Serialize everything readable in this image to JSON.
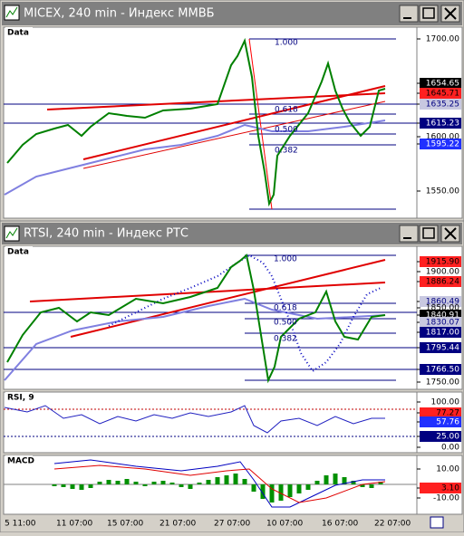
{
  "windows": [
    {
      "title": "MICEX, 240 min - Индекс ММВБ",
      "panels": [
        {
          "label": "Data",
          "axis": [
            "1700.00",
            "1654.65",
            "1645.71",
            "1635.25",
            "1615.23",
            "1600.00",
            "1595.22",
            "1550.00"
          ],
          "fib": [
            "1.000",
            "0.618",
            "0.500",
            "0.382"
          ]
        }
      ]
    },
    {
      "title": "RTSI, 240 min - Индекс РТС",
      "panels": [
        {
          "label": "Data",
          "axis": [
            "1915.90",
            "1900.00",
            "1886.24",
            "1860.49",
            "1850.00",
            "1840.91",
            "1830.07",
            "1817.00",
            "1795.44",
            "1766.50",
            "1750.00"
          ],
          "fib": [
            "1.000",
            "0.618",
            "0.500",
            "0.382"
          ]
        },
        {
          "label": "RSI, 9",
          "axis": [
            "100.00",
            "77.27",
            "57.76",
            "25.00",
            "0.00"
          ]
        },
        {
          "label": "MACD",
          "axis": [
            "10.00",
            "3.10",
            "-10.00"
          ]
        }
      ],
      "time_axis": [
        "5 11:00",
        "11 07:00",
        "15 07:00",
        "21 07:00",
        "27 07:00",
        "10 07:00",
        "16 07:00",
        "22 07:00"
      ]
    }
  ]
}
